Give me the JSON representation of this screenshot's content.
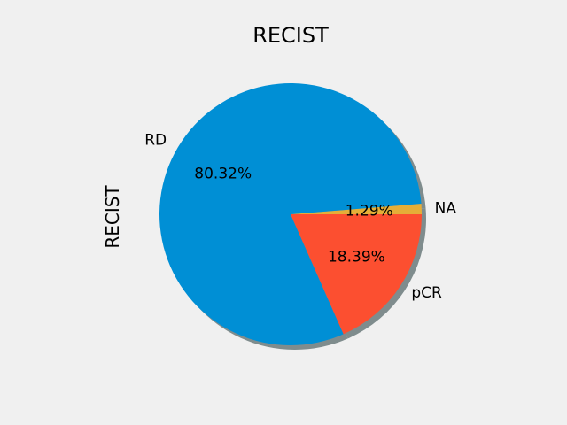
{
  "chart_data": {
    "type": "pie",
    "title": "RECIST",
    "ylabel": "RECIST",
    "shadow": true,
    "start_angle_deg": 0,
    "direction": "counterclockwise",
    "slices": [
      {
        "label": "NA",
        "value": 1.29,
        "pct_label": "1.29%",
        "color": "#e5ae38"
      },
      {
        "label": "RD",
        "value": 80.32,
        "pct_label": "80.32%",
        "color": "#008fd5"
      },
      {
        "label": "pCR",
        "value": 18.39,
        "pct_label": "18.39%",
        "color": "#fc4f30"
      }
    ]
  },
  "colors": {
    "background": "#f0f0f0",
    "shadow": "#7f8c8d"
  }
}
